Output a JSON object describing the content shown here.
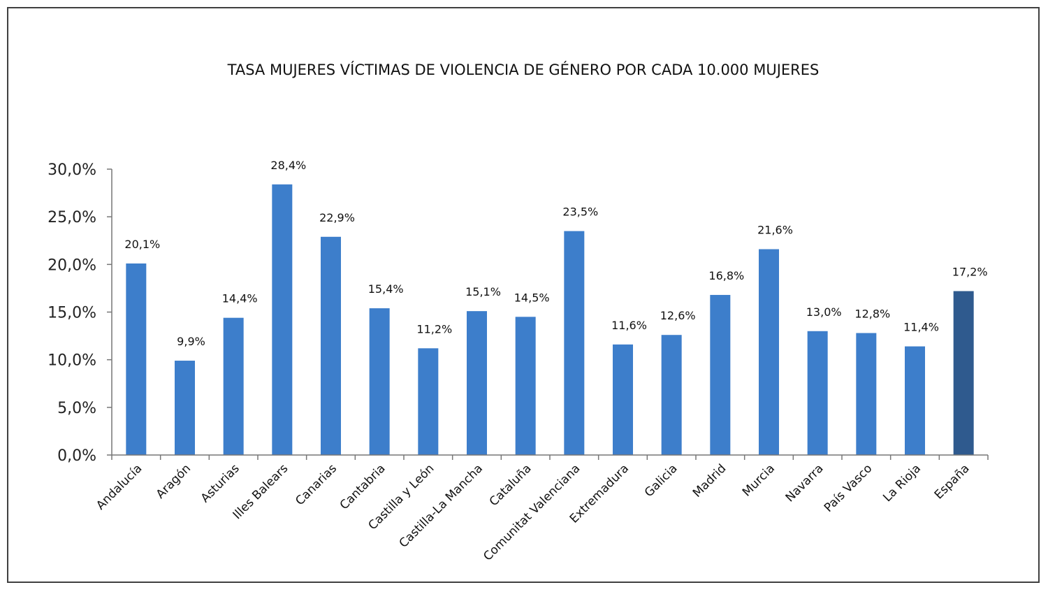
{
  "chart_data": {
    "type": "bar",
    "title": "TASA MUJERES VÍCTIMAS DE VIOLENCIA DE GÉNERO POR CADA 10.000 MUJERES",
    "xlabel": "",
    "ylabel": "",
    "ylim": [
      0,
      30
    ],
    "yticks": [
      0,
      5,
      10,
      15,
      20,
      25,
      30
    ],
    "ytick_labels": [
      "0,0%",
      "5,0%",
      "10,0%",
      "15,0%",
      "20,0%",
      "25,0%",
      "30,0%"
    ],
    "grid": false,
    "legend": "none",
    "colors": {
      "bar": "#3d7ecb",
      "highlight": "#2f5a8e"
    },
    "highlight_category": "España",
    "categories": [
      "Andalucía",
      "Aragón",
      "Asturias",
      "Illes Balears",
      "Canarias",
      "Cantabria",
      "Castilla y León",
      "Castilla-La Mancha",
      "Cataluña",
      "Comunitat Valenciana",
      "Extremadura",
      "Galicia",
      "Madrid",
      "Murcia",
      "Navarra",
      "País Vasco",
      "La Rioja",
      "España"
    ],
    "values": [
      20.1,
      9.9,
      14.4,
      28.4,
      22.9,
      15.4,
      11.2,
      15.1,
      14.5,
      23.5,
      11.6,
      12.6,
      16.8,
      21.6,
      13.0,
      12.8,
      11.4,
      17.2
    ],
    "value_labels": [
      "20,1%",
      "9,9%",
      "14,4%",
      "28,4%",
      "22,9%",
      "15,4%",
      "11,2%",
      "15,1%",
      "14,5%",
      "23,5%",
      "11,6%",
      "12,6%",
      "16,8%",
      "21,6%",
      "13,0%",
      "12,8%",
      "11,4%",
      "17,2%"
    ]
  }
}
